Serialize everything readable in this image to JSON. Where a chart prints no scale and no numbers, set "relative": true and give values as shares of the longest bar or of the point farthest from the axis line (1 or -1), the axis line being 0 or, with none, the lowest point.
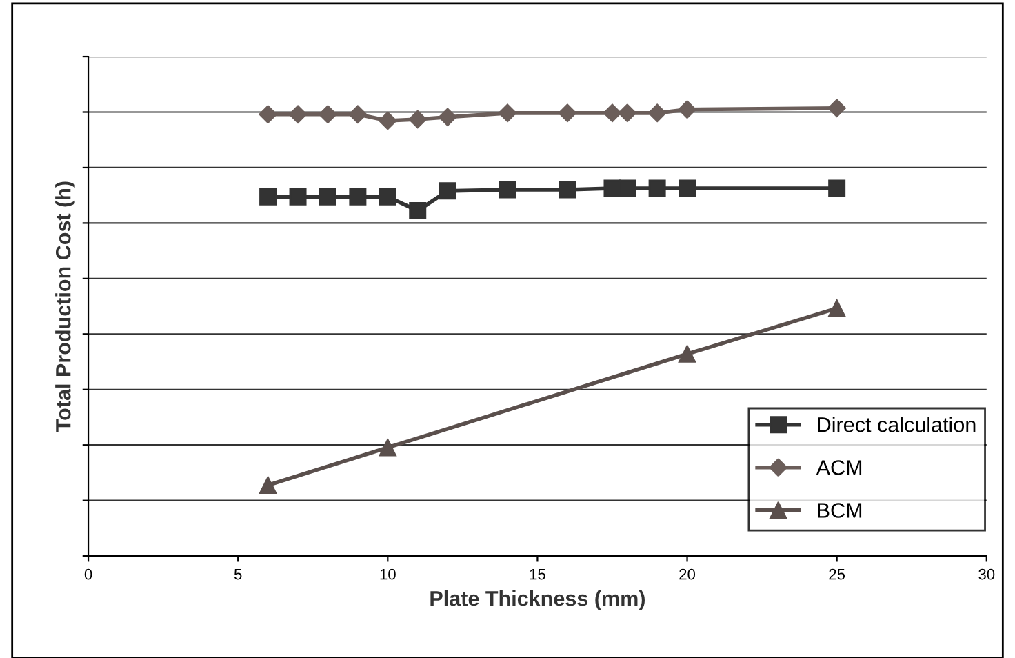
{
  "chart_data": {
    "type": "line",
    "relative": true,
    "xlabel": "Plate Thickness (mm)",
    "ylabel": "Total Production Cost (h)",
    "xlim": [
      0,
      30
    ],
    "xticks": [
      0,
      5,
      10,
      15,
      20,
      25,
      30
    ],
    "grid": "y",
    "legend": "bottom right",
    "tick_labels": "x",
    "series": [
      {
        "name": "Direct calculation",
        "color": "#333333",
        "marker": "square",
        "x": [
          6,
          7,
          8,
          9,
          10,
          11,
          12,
          14,
          16,
          17.5,
          18,
          19,
          20,
          25
        ],
        "values": [
          0.802,
          0.802,
          0.802,
          0.802,
          0.802,
          0.771,
          0.815,
          0.818,
          0.818,
          0.821,
          0.821,
          0.821,
          0.821,
          0.821
        ]
      },
      {
        "name": "ACM",
        "color": "#6b5e5a",
        "marker": "diamond",
        "x": [
          6,
          7,
          8,
          9,
          10,
          11,
          12,
          14,
          16,
          17.5,
          18,
          19,
          20,
          25
        ],
        "values": [
          0.986,
          0.986,
          0.986,
          0.986,
          0.972,
          0.975,
          0.98,
          0.989,
          0.989,
          0.989,
          0.989,
          0.989,
          0.997,
          1
        ]
      },
      {
        "name": "BCM",
        "color": "#5a4f4c",
        "marker": "triangle",
        "x": [
          6,
          10,
          20,
          25
        ],
        "values": [
          0.158,
          0.242,
          0.451,
          0.553
        ]
      }
    ]
  }
}
